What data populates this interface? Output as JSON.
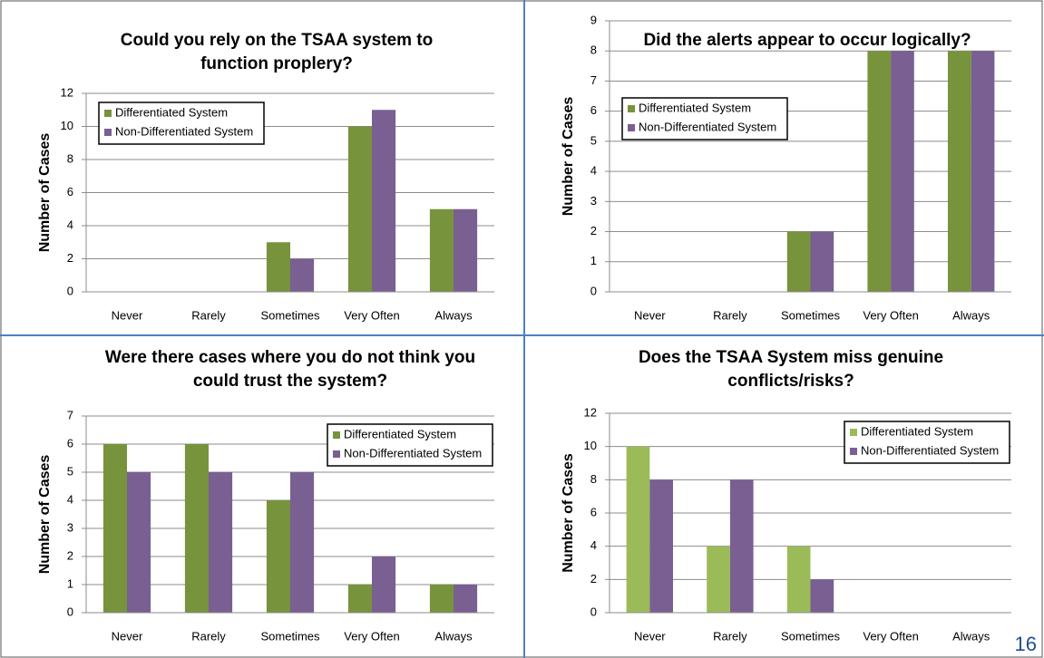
{
  "chart_data": [
    {
      "type": "bar",
      "title": "Could you rely on the TSAA system to function proplery?",
      "y_label": "Number of Cases",
      "categories": [
        "Never",
        "Rarely",
        "Sometimes",
        "Very Often",
        "Always"
      ],
      "series": [
        {
          "name": "Differentiated System",
          "color": "#77933c",
          "values": [
            0,
            0,
            3,
            10,
            5
          ]
        },
        {
          "name": "Non-Differentiated System",
          "color": "#7a5f92",
          "values": [
            0,
            0,
            2,
            11,
            5
          ]
        }
      ],
      "ylim": [
        0,
        12
      ],
      "yticks": [
        0,
        2,
        4,
        6,
        8,
        10,
        12
      ],
      "grid": true,
      "legend": "upper left"
    },
    {
      "type": "bar",
      "title": "Did the alerts appear to occur logically?",
      "y_label": "Number of Cases",
      "categories": [
        "Never",
        "Rarely",
        "Sometimes",
        "Very Often",
        "Always"
      ],
      "series": [
        {
          "name": "Differentiated System",
          "color": "#77933c",
          "values": [
            0,
            0,
            2,
            8,
            8
          ]
        },
        {
          "name": "Non-Differentiated System",
          "color": "#7a5f92",
          "values": [
            0,
            0,
            2,
            8,
            8
          ]
        }
      ],
      "ylim": [
        0,
        9
      ],
      "yticks": [
        0,
        1,
        2,
        3,
        4,
        5,
        6,
        7,
        8,
        9
      ],
      "grid": true,
      "legend": "upper left"
    },
    {
      "type": "bar",
      "title": "Were there cases where you do not think you could trust the system?",
      "y_label": "Number of Cases",
      "categories": [
        "Never",
        "Rarely",
        "Sometimes",
        "Very Often",
        "Always"
      ],
      "series": [
        {
          "name": "Differentiated System",
          "color": "#77933c",
          "values": [
            6,
            6,
            4,
            1,
            1
          ]
        },
        {
          "name": "Non-Differentiated System",
          "color": "#7a5f92",
          "values": [
            5,
            5,
            5,
            2,
            1
          ]
        }
      ],
      "ylim": [
        0,
        7
      ],
      "yticks": [
        0,
        1,
        2,
        3,
        4,
        5,
        6,
        7
      ],
      "grid": true,
      "legend": "upper right"
    },
    {
      "type": "bar",
      "title": "Does the TSAA System miss genuine conflicts/risks?",
      "y_label": "Number of Cases",
      "categories": [
        "Never",
        "Rarely",
        "Sometimes",
        "Very Often",
        "Always"
      ],
      "series": [
        {
          "name": "Differentiated System",
          "color": "#9bbb59",
          "values": [
            10,
            4,
            4,
            0,
            0
          ]
        },
        {
          "name": "Non-Differentiated System",
          "color": "#7a5f92",
          "values": [
            8,
            8,
            2,
            0,
            0
          ]
        }
      ],
      "ylim": [
        0,
        12
      ],
      "yticks": [
        0,
        2,
        4,
        6,
        8,
        10,
        12
      ],
      "grid": true,
      "legend": "upper right"
    }
  ],
  "page_number": "16"
}
